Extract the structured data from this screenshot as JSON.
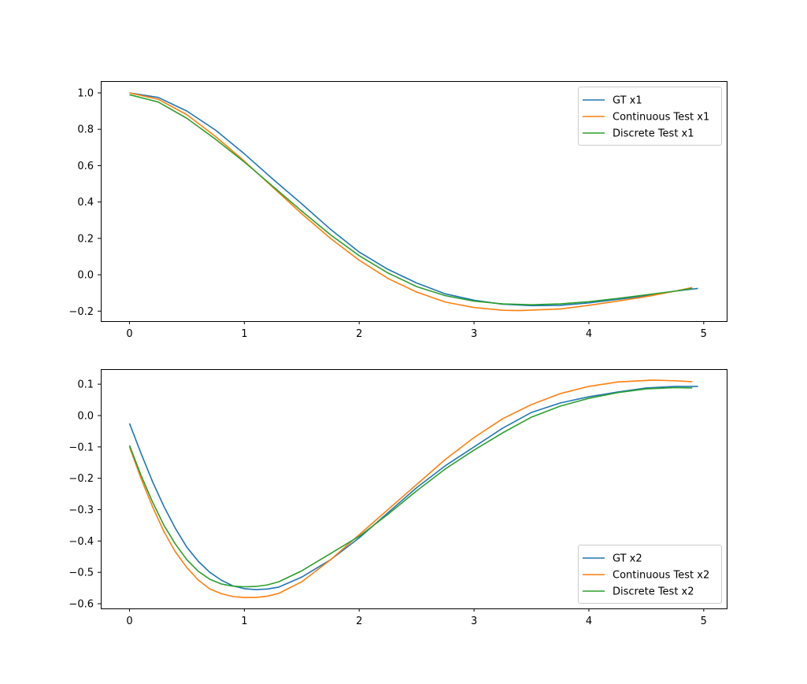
{
  "chart_data": [
    {
      "type": "line",
      "title": "",
      "xlabel": "",
      "ylabel": "",
      "xlim": [
        -0.25,
        5.2
      ],
      "ylim": [
        -0.255,
        1.065
      ],
      "xticks": [
        0,
        1,
        2,
        3,
        4,
        5
      ],
      "yticks": [
        -0.2,
        0.0,
        0.2,
        0.4,
        0.6,
        0.8,
        1.0
      ],
      "legend_position": "upper right",
      "series": [
        {
          "name": "GT x1",
          "color": "#1f77b4",
          "x": [
            0,
            0.25,
            0.5,
            0.75,
            1.0,
            1.25,
            1.5,
            1.75,
            2.0,
            2.25,
            2.5,
            2.75,
            3.0,
            3.25,
            3.5,
            3.75,
            4.0,
            4.25,
            4.5,
            4.75,
            4.95
          ],
          "y": [
            1.0,
            0.975,
            0.9,
            0.795,
            0.665,
            0.525,
            0.39,
            0.25,
            0.125,
            0.03,
            -0.045,
            -0.105,
            -0.14,
            -0.162,
            -0.17,
            -0.168,
            -0.155,
            -0.135,
            -0.115,
            -0.09,
            -0.075
          ]
        },
        {
          "name": "Continuous Test x1",
          "color": "#ff7f0e",
          "x": [
            0,
            0.25,
            0.5,
            0.75,
            1.0,
            1.25,
            1.5,
            1.75,
            2.0,
            2.25,
            2.5,
            2.75,
            3.0,
            3.25,
            3.4,
            3.75,
            4.0,
            4.25,
            4.5,
            4.75,
            4.9
          ],
          "y": [
            1.0,
            0.965,
            0.88,
            0.76,
            0.625,
            0.48,
            0.335,
            0.2,
            0.08,
            -0.02,
            -0.095,
            -0.15,
            -0.18,
            -0.195,
            -0.197,
            -0.188,
            -0.168,
            -0.145,
            -0.12,
            -0.09,
            -0.07
          ]
        },
        {
          "name": "Discrete Test x1",
          "color": "#2ca02c",
          "x": [
            0,
            0.25,
            0.5,
            0.75,
            1.0,
            1.25,
            1.5,
            1.75,
            2.0,
            2.25,
            2.5,
            2.75,
            3.0,
            3.25,
            3.5,
            3.75,
            4.0,
            4.25,
            4.5,
            4.75,
            4.9
          ],
          "y": [
            0.99,
            0.95,
            0.86,
            0.745,
            0.62,
            0.485,
            0.35,
            0.22,
            0.105,
            0.01,
            -0.065,
            -0.115,
            -0.145,
            -0.16,
            -0.165,
            -0.16,
            -0.148,
            -0.13,
            -0.11,
            -0.09,
            -0.075
          ]
        }
      ]
    },
    {
      "type": "line",
      "title": "",
      "xlabel": "",
      "ylabel": "",
      "xlim": [
        -0.25,
        5.2
      ],
      "ylim": [
        -0.615,
        0.148
      ],
      "xticks": [
        0,
        1,
        2,
        3,
        4,
        5
      ],
      "yticks": [
        -0.6,
        -0.5,
        -0.4,
        -0.3,
        -0.2,
        -0.1,
        0.0,
        0.1
      ],
      "legend_position": "lower right",
      "series": [
        {
          "name": "GT x2",
          "color": "#1f77b4",
          "x": [
            0,
            0.1,
            0.2,
            0.3,
            0.4,
            0.5,
            0.6,
            0.7,
            0.8,
            0.9,
            1.0,
            1.1,
            1.2,
            1.3,
            1.5,
            1.75,
            2.0,
            2.25,
            2.5,
            2.75,
            3.0,
            3.25,
            3.5,
            3.75,
            4.0,
            4.25,
            4.5,
            4.75,
            4.95
          ],
          "y": [
            -0.025,
            -0.12,
            -0.21,
            -0.29,
            -0.36,
            -0.42,
            -0.465,
            -0.5,
            -0.525,
            -0.543,
            -0.552,
            -0.555,
            -0.553,
            -0.547,
            -0.515,
            -0.46,
            -0.39,
            -0.31,
            -0.23,
            -0.16,
            -0.1,
            -0.04,
            0.01,
            0.04,
            0.06,
            0.075,
            0.088,
            0.093,
            0.093
          ]
        },
        {
          "name": "Continuous Test x2",
          "color": "#ff7f0e",
          "x": [
            0,
            0.1,
            0.2,
            0.3,
            0.4,
            0.5,
            0.6,
            0.7,
            0.8,
            0.9,
            1.0,
            1.1,
            1.2,
            1.3,
            1.5,
            1.75,
            2.0,
            2.25,
            2.5,
            2.75,
            3.0,
            3.25,
            3.5,
            3.75,
            4.0,
            4.25,
            4.55,
            4.75,
            4.9
          ],
          "y": [
            -0.1,
            -0.2,
            -0.29,
            -0.37,
            -0.435,
            -0.485,
            -0.525,
            -0.553,
            -0.568,
            -0.577,
            -0.58,
            -0.58,
            -0.576,
            -0.567,
            -0.53,
            -0.46,
            -0.38,
            -0.3,
            -0.22,
            -0.14,
            -0.07,
            -0.01,
            0.035,
            0.07,
            0.093,
            0.107,
            0.113,
            0.111,
            0.108
          ]
        },
        {
          "name": "Discrete Test x2",
          "color": "#2ca02c",
          "x": [
            0,
            0.1,
            0.2,
            0.3,
            0.4,
            0.5,
            0.6,
            0.7,
            0.8,
            0.9,
            1.0,
            1.1,
            1.2,
            1.3,
            1.5,
            1.75,
            2.0,
            2.25,
            2.5,
            2.75,
            3.0,
            3.25,
            3.5,
            3.75,
            4.0,
            4.25,
            4.5,
            4.75,
            4.9
          ],
          "y": [
            -0.095,
            -0.19,
            -0.275,
            -0.35,
            -0.41,
            -0.46,
            -0.497,
            -0.522,
            -0.537,
            -0.544,
            -0.546,
            -0.545,
            -0.54,
            -0.53,
            -0.495,
            -0.44,
            -0.385,
            -0.315,
            -0.24,
            -0.17,
            -0.11,
            -0.055,
            -0.005,
            0.03,
            0.055,
            0.073,
            0.085,
            0.089,
            0.088
          ]
        }
      ]
    }
  ]
}
